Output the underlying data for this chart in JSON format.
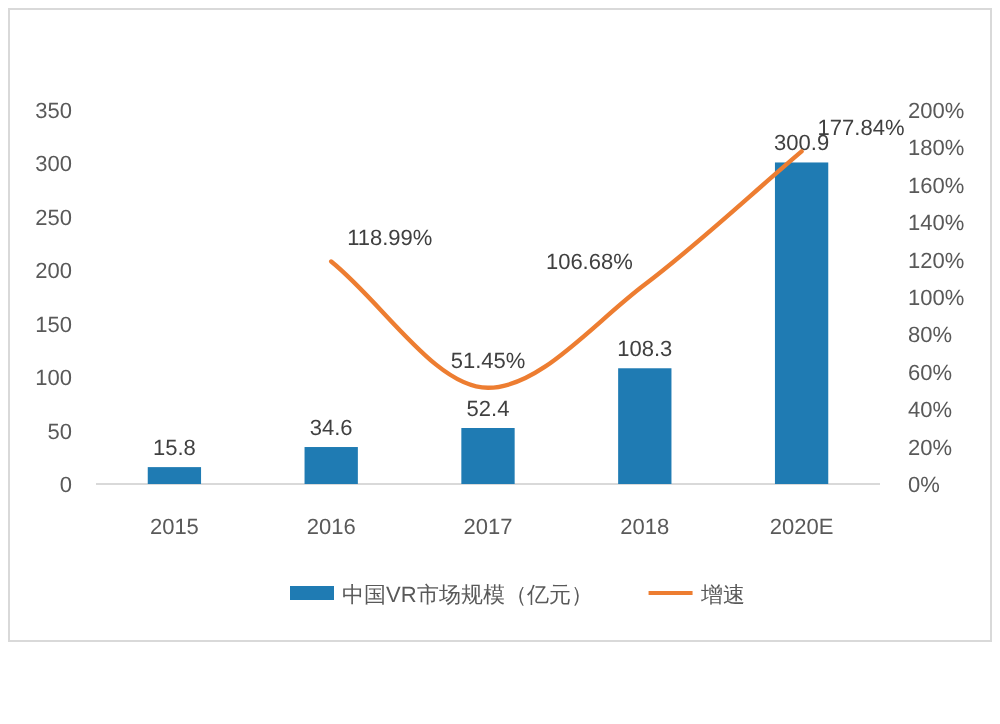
{
  "chart_data": {
    "type": "bar",
    "categories": [
      "2015",
      "2016",
      "2017",
      "2018",
      "2020E"
    ],
    "series": [
      {
        "name": "中国VR市场规模（亿元）",
        "color": "#1f7bb3",
        "values": [
          15.8,
          34.6,
          52.4,
          108.3,
          300.9
        ],
        "value_labels": [
          "15.8",
          "34.6",
          "52.4",
          "108.3",
          "300.9"
        ]
      },
      {
        "name": "增速",
        "type": "line",
        "axis": "y2",
        "color": "#ed7d31",
        "values": [
          null,
          118.99,
          51.45,
          106.68,
          177.84
        ],
        "value_labels": [
          null,
          "118.99%",
          "51.45%",
          "106.68%",
          "177.84%"
        ]
      }
    ],
    "ylim": [
      0,
      350
    ],
    "yticks": [
      0,
      50,
      100,
      150,
      200,
      250,
      300,
      350
    ],
    "y2lim": [
      0,
      200
    ],
    "y2ticks": [
      {
        "value": 0,
        "label": "0%"
      },
      {
        "value": 20,
        "label": "20%"
      },
      {
        "value": 40,
        "label": "40%"
      },
      {
        "value": 60,
        "label": "60%"
      },
      {
        "value": 80,
        "label": "80%"
      },
      {
        "value": 100,
        "label": "100%"
      },
      {
        "value": 120,
        "label": "120%"
      },
      {
        "value": 140,
        "label": "140%"
      },
      {
        "value": 160,
        "label": "160%"
      },
      {
        "value": 180,
        "label": "180%"
      },
      {
        "value": 200,
        "label": "200%"
      }
    ],
    "legend": "bottom",
    "grid": false,
    "marker": "none",
    "line_style": "solid"
  }
}
